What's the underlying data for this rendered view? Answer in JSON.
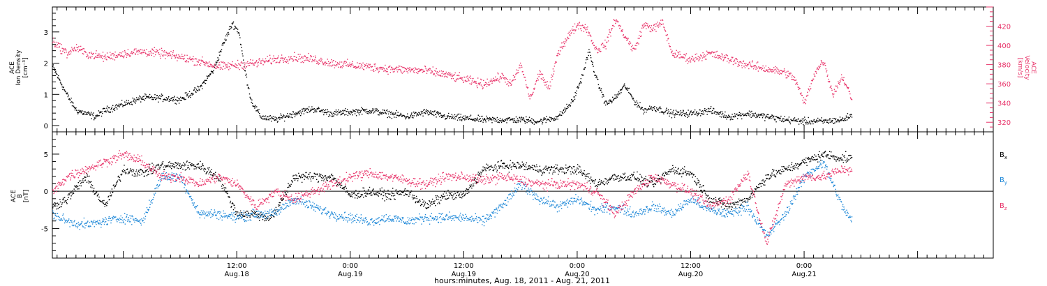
{
  "colors": {
    "black": "#000000",
    "magenta": "#e8346a",
    "blue": "#1e88d8"
  },
  "x_axis": {
    "label": "hours:minutes, Aug. 18, 2011 - Aug. 21, 2011",
    "range_hours": [
      -7.5,
      92
    ],
    "ticks": [
      {
        "hour": 12,
        "time": "12:00",
        "date": "Aug.18"
      },
      {
        "hour": 24,
        "time": "0:00",
        "date": "Aug.19"
      },
      {
        "hour": 36,
        "time": "12:00",
        "date": "Aug.19"
      },
      {
        "hour": 48,
        "time": "0:00",
        "date": "Aug.20"
      },
      {
        "hour": 60,
        "time": "12:00",
        "date": "Aug.20"
      },
      {
        "hour": 72,
        "time": "0:00",
        "date": "Aug.21"
      }
    ]
  },
  "chart_data": [
    {
      "type": "scatter",
      "panel": "top",
      "ylabel_left": [
        "ACE",
        "Ion Density",
        "[cm⁻³]"
      ],
      "ylabel_right": [
        "ACE",
        "Velocity",
        "[km/s]"
      ],
      "ylim_left": [
        -0.2,
        3.8
      ],
      "ylim_right": [
        310,
        440
      ],
      "yticks_left": [
        "0",
        "1",
        "2",
        "3"
      ],
      "yticks_right": [
        "320",
        "340",
        "360",
        "380",
        "400",
        "420"
      ],
      "series": [
        {
          "axis": "left",
          "color": "black",
          "x_hours": [
            -7.5,
            -6,
            -5,
            -4,
            -3,
            -2,
            -1,
            0,
            2,
            4,
            6,
            8,
            9.5,
            10.5,
            11.5,
            12.2,
            12.8,
            13.5,
            14.5,
            16,
            18,
            20,
            22,
            24,
            26,
            28,
            30,
            32,
            34,
            36,
            38,
            40,
            42,
            44,
            46,
            47.5,
            48.5,
            49.2,
            50,
            51,
            52,
            53,
            54,
            55,
            56,
            58,
            60,
            62,
            64,
            66,
            68,
            70,
            72,
            74,
            76,
            77
          ],
          "values": [
            1.9,
            1.0,
            0.5,
            0.4,
            0.3,
            0.5,
            0.6,
            0.7,
            0.9,
            0.9,
            0.85,
            1.2,
            1.8,
            2.6,
            3.3,
            3.0,
            1.8,
            0.8,
            0.3,
            0.2,
            0.4,
            0.55,
            0.4,
            0.45,
            0.5,
            0.4,
            0.3,
            0.45,
            0.3,
            0.25,
            0.2,
            0.2,
            0.2,
            0.15,
            0.3,
            0.8,
            1.6,
            2.4,
            1.5,
            0.7,
            0.9,
            1.3,
            0.8,
            0.5,
            0.6,
            0.4,
            0.4,
            0.5,
            0.3,
            0.4,
            0.3,
            0.2,
            0.15,
            0.15,
            0.2,
            0.35
          ]
        },
        {
          "axis": "right",
          "color": "magenta",
          "x_hours": [
            -7.5,
            -6,
            -5,
            -4,
            -2,
            0,
            2,
            4,
            6,
            8,
            10,
            12,
            14,
            16,
            18,
            20,
            22,
            24,
            26,
            28,
            30,
            32,
            34,
            36,
            38,
            40,
            41,
            42,
            43,
            44,
            45,
            46,
            47,
            48,
            49,
            50,
            51,
            52,
            53,
            54,
            55,
            56,
            57,
            58,
            60,
            62,
            64,
            66,
            68,
            70,
            71,
            72,
            73,
            74,
            75,
            76,
            77
          ],
          "values": [
            405,
            392,
            398,
            392,
            388,
            392,
            394,
            392,
            388,
            384,
            378,
            380,
            382,
            386,
            388,
            386,
            382,
            380,
            378,
            376,
            375,
            374,
            370,
            365,
            360,
            368,
            360,
            380,
            345,
            372,
            355,
            395,
            410,
            422,
            418,
            395,
            402,
            428,
            410,
            395,
            422,
            418,
            424,
            392,
            386,
            392,
            386,
            380,
            376,
            372,
            365,
            340,
            370,
            385,
            350,
            368,
            345
          ]
        }
      ]
    },
    {
      "type": "scatter",
      "panel": "bottom",
      "ylabel_left": [
        "ACE",
        "B",
        "[nT]"
      ],
      "ylim": [
        -9,
        8
      ],
      "yticks": [
        "-5",
        "0",
        "5"
      ],
      "legend_position": "right",
      "series": [
        {
          "name": "Bx",
          "color": "black",
          "x_hours": [
            -7.5,
            -6,
            -4,
            -2,
            0,
            2,
            4,
            6,
            8,
            10,
            12,
            14,
            15,
            16,
            18,
            20,
            22,
            24,
            26,
            28,
            30,
            32,
            34,
            36,
            38,
            40,
            42,
            44,
            46,
            48,
            50,
            52,
            54,
            56,
            58,
            60,
            62,
            64,
            66,
            68,
            70,
            72,
            74,
            76,
            77
          ],
          "values": [
            -2,
            -1,
            2,
            -2,
            3,
            2.5,
            3.5,
            3.5,
            3.5,
            2,
            -3,
            -3,
            -3.5,
            -3,
            2,
            2,
            2,
            -0.5,
            0,
            -0.5,
            0,
            -2,
            -0.5,
            -0.5,
            3,
            3.5,
            3.5,
            3,
            3,
            3,
            1,
            2,
            2,
            1,
            3,
            2.5,
            -1,
            -2,
            -1,
            2,
            3,
            4,
            5,
            4.5,
            4.5
          ]
        },
        {
          "name": "By",
          "color": "blue",
          "x_hours": [
            -7.5,
            -6,
            -4,
            -2,
            0,
            2,
            4,
            6,
            8,
            10,
            12,
            14,
            16,
            18,
            20,
            22,
            24,
            26,
            28,
            30,
            32,
            34,
            36,
            38,
            40,
            42,
            44,
            46,
            48,
            50,
            52,
            54,
            56,
            58,
            60,
            62,
            64,
            66,
            68,
            70,
            72,
            74,
            76,
            77
          ],
          "values": [
            -3,
            -4,
            -4.5,
            -4,
            -3.5,
            -4,
            2,
            2,
            -3,
            -3,
            -3.5,
            -3,
            -3,
            -1,
            -2,
            -3,
            -3.5,
            -4,
            -3.5,
            -4,
            -3.5,
            -3.5,
            -3.5,
            -4,
            -2,
            1,
            -1,
            -2,
            -1,
            -2.5,
            -2,
            -3,
            -2,
            -3,
            -1,
            -2.5,
            -3,
            -2,
            -6,
            -3,
            2,
            4,
            -2,
            -4
          ]
        },
        {
          "name": "Bz",
          "color": "magenta",
          "x_hours": [
            -7.5,
            -6,
            -4,
            -2,
            0,
            2,
            4,
            6,
            8,
            10,
            12,
            14,
            16,
            18,
            20,
            22,
            24,
            26,
            28,
            30,
            32,
            34,
            36,
            38,
            40,
            42,
            44,
            46,
            48,
            50,
            52,
            54,
            56,
            58,
            60,
            62,
            64,
            66,
            68,
            70,
            72,
            74,
            76,
            77
          ],
          "values": [
            0,
            2,
            3,
            4,
            5,
            4,
            2,
            2,
            1,
            2,
            1,
            -2,
            0,
            -1,
            0,
            1,
            2,
            2.5,
            2,
            1.5,
            1,
            2,
            2,
            1.5,
            2,
            1.5,
            1,
            1,
            1,
            0,
            -3,
            0,
            2,
            1,
            0,
            -2,
            -1,
            2.5,
            -7,
            1,
            2,
            2,
            3,
            3
          ]
        }
      ]
    }
  ]
}
